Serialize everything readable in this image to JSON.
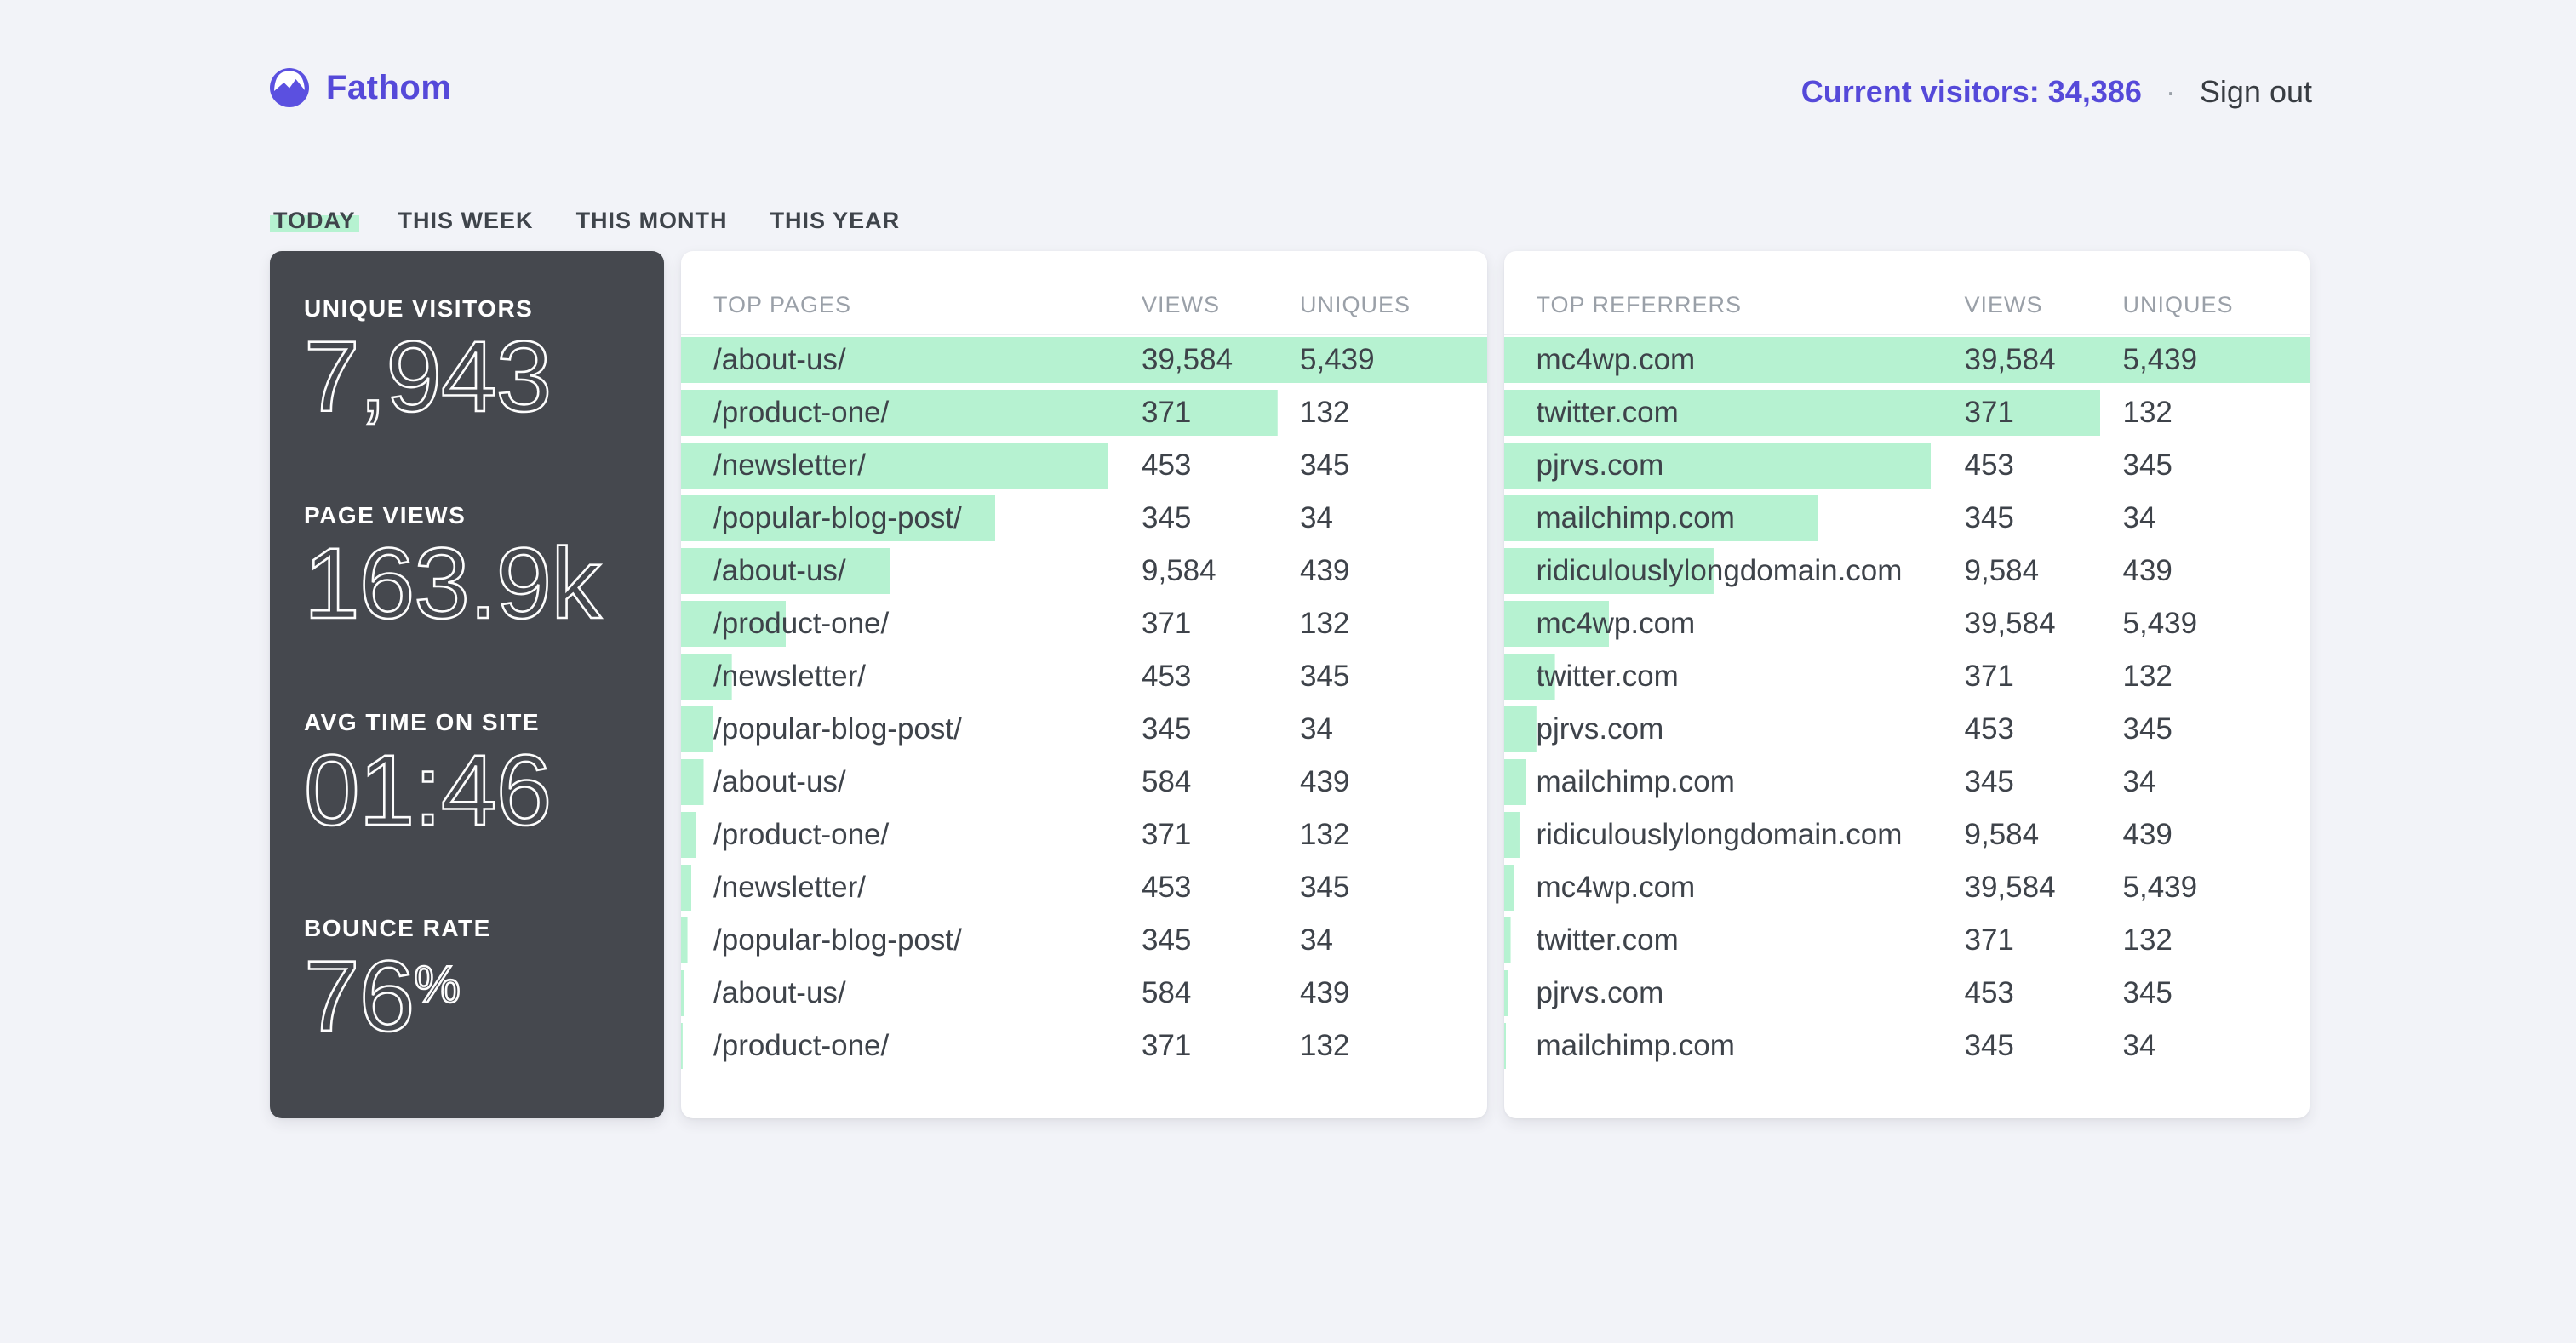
{
  "brand": {
    "name": "Fathom"
  },
  "icons": {
    "brand_logo": "fathom-mountain-logo",
    "separator": "dot"
  },
  "colors": {
    "accent_indigo": "#5549d9",
    "bar_green": "#b6f2d1",
    "dark_card": "#45484e",
    "page_background": "#f2f3f8"
  },
  "header": {
    "current_visitors_label": "Current visitors:",
    "current_visitors_value": "34,386",
    "separator": "·",
    "sign_out_label": "Sign out"
  },
  "tabs": [
    {
      "label": "TODAY",
      "active": true
    },
    {
      "label": "THIS WEEK",
      "active": false
    },
    {
      "label": "THIS MONTH",
      "active": false
    },
    {
      "label": "THIS YEAR",
      "active": false
    }
  ],
  "stats": [
    {
      "label": "UNIQUE VISITORS",
      "value": "7,943",
      "suffix": ""
    },
    {
      "label": "PAGE VIEWS",
      "value": "163.9k",
      "suffix": ""
    },
    {
      "label": "AVG TIME ON SITE",
      "value": "01:46",
      "suffix": ""
    },
    {
      "label": "BOUNCE RATE",
      "value": "76",
      "suffix": "%"
    }
  ],
  "tables": {
    "pages": {
      "title": "TOP PAGES",
      "columns": {
        "views": "VIEWS",
        "uniques": "UNIQUES"
      },
      "rows": [
        {
          "name": "/about-us/",
          "views": "39,584",
          "uniques": "5,439",
          "bar": 100
        },
        {
          "name": "/product-one/",
          "views": "371",
          "uniques": "132",
          "bar": 74
        },
        {
          "name": "/newsletter/",
          "views": "453",
          "uniques": "345",
          "bar": 53
        },
        {
          "name": "/popular-blog-post/",
          "views": "345",
          "uniques": "34",
          "bar": 39
        },
        {
          "name": "/about-us/",
          "views": "9,584",
          "uniques": "439",
          "bar": 26
        },
        {
          "name": "/product-one/",
          "views": "371",
          "uniques": "132",
          "bar": 13
        },
        {
          "name": "/newsletter/",
          "views": "453",
          "uniques": "345",
          "bar": 6.3
        },
        {
          "name": "/popular-blog-post/",
          "views": "345",
          "uniques": "34",
          "bar": 4
        },
        {
          "name": "/about-us/",
          "views": "584",
          "uniques": "439",
          "bar": 2.8
        },
        {
          "name": "/product-one/",
          "views": "371",
          "uniques": "132",
          "bar": 1.9
        },
        {
          "name": "/newsletter/",
          "views": "453",
          "uniques": "345",
          "bar": 1.3
        },
        {
          "name": "/popular-blog-post/",
          "views": "345",
          "uniques": "34",
          "bar": 0.8
        },
        {
          "name": "/about-us/",
          "views": "584",
          "uniques": "439",
          "bar": 0.45
        },
        {
          "name": "/product-one/",
          "views": "371",
          "uniques": "132",
          "bar": 0.2
        }
      ]
    },
    "referrers": {
      "title": "TOP REFERRERS",
      "columns": {
        "views": "VIEWS",
        "uniques": "UNIQUES"
      },
      "rows": [
        {
          "name": "mc4wp.com",
          "views": "39,584",
          "uniques": "5,439",
          "bar": 100
        },
        {
          "name": "twitter.com",
          "views": "371",
          "uniques": "132",
          "bar": 74
        },
        {
          "name": "pjrvs.com",
          "views": "453",
          "uniques": "345",
          "bar": 53
        },
        {
          "name": "mailchimp.com",
          "views": "345",
          "uniques": "34",
          "bar": 39
        },
        {
          "name": "ridiculouslylongdomain.com",
          "views": "9,584",
          "uniques": "439",
          "bar": 26
        },
        {
          "name": "mc4wp.com",
          "views": "39,584",
          "uniques": "5,439",
          "bar": 13
        },
        {
          "name": "twitter.com",
          "views": "371",
          "uniques": "132",
          "bar": 6.3
        },
        {
          "name": "pjrvs.com",
          "views": "453",
          "uniques": "345",
          "bar": 4
        },
        {
          "name": "mailchimp.com",
          "views": "345",
          "uniques": "34",
          "bar": 2.8
        },
        {
          "name": "ridiculouslylongdomain.com",
          "views": "9,584",
          "uniques": "439",
          "bar": 1.9
        },
        {
          "name": "mc4wp.com",
          "views": "39,584",
          "uniques": "5,439",
          "bar": 1.3
        },
        {
          "name": "twitter.com",
          "views": "371",
          "uniques": "132",
          "bar": 0.8
        },
        {
          "name": "pjrvs.com",
          "views": "453",
          "uniques": "345",
          "bar": 0.45
        },
        {
          "name": "mailchimp.com",
          "views": "345",
          "uniques": "34",
          "bar": 0.25
        }
      ]
    }
  }
}
